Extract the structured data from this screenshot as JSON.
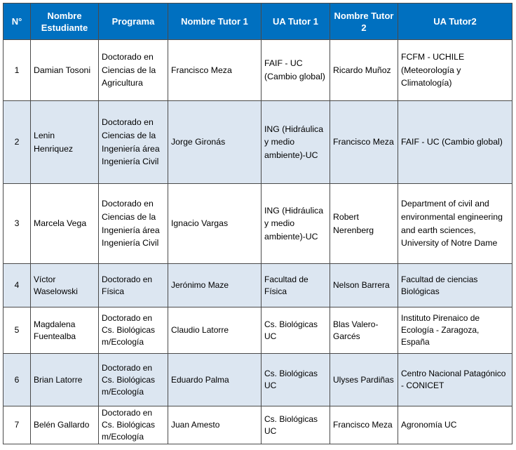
{
  "table": {
    "headers": [
      "N°",
      "Nombre Estudiante",
      "Programa",
      "Nombre Tutor 1",
      "UA Tutor 1",
      "Nombre Tutor 2",
      "UA Tutor2"
    ],
    "rows": [
      [
        "1",
        "Damian Tosoni",
        "Doctorado en Ciencias de la Agricultura",
        "Francisco Meza",
        "FAIF - UC (Cambio global)",
        "Ricardo Muñoz",
        "FCFM - UCHILE (Meteorología y Climatología)"
      ],
      [
        "2",
        "Lenin Henriquez",
        "Doctorado en Ciencias de la Ingeniería área Ingeniería Civil",
        "Jorge Gironás",
        "ING (Hidráulica y medio ambiente)-UC",
        "Francisco Meza",
        "FAIF - UC (Cambio global)"
      ],
      [
        "3",
        "Marcela Vega",
        "Doctorado en Ciencias de la Ingeniería área Ingeniería Civil",
        "Ignacio Vargas",
        "ING (Hidráulica y medio ambiente)-UC",
        "Robert Nerenberg",
        "Department of civil and environmental engineering and earth sciences, University of Notre Dame"
      ],
      [
        "4",
        "Víctor Waselowski",
        "Doctorado en Física",
        "Jerónimo Maze",
        "Facultad de Física",
        "Nelson Barrera",
        "Facultad de ciencias Biológicas"
      ],
      [
        "5",
        "Magdalena Fuentealba",
        "Doctorado en Cs. Biológicas m/Ecología",
        "Claudio Latorre",
        "Cs. Biológicas UC",
        "Blas Valero-Garcés",
        "Instituto Pirenaico de Ecología - Zaragoza, España"
      ],
      [
        "6",
        "Brian Latorre",
        "Doctorado en Cs. Biológicas m/Ecología",
        "Eduardo Palma",
        "Cs. Biológicas UC",
        "Ulyses Pardiñas",
        "Centro Nacional Patagónico - CONICET"
      ],
      [
        "7",
        "Belén Gallardo",
        "Doctorado en Cs. Biológicas m/Ecología",
        "Juan Amesto",
        "Cs. Biológicas UC",
        "Francisco Meza",
        "Agronomía UC"
      ]
    ]
  }
}
